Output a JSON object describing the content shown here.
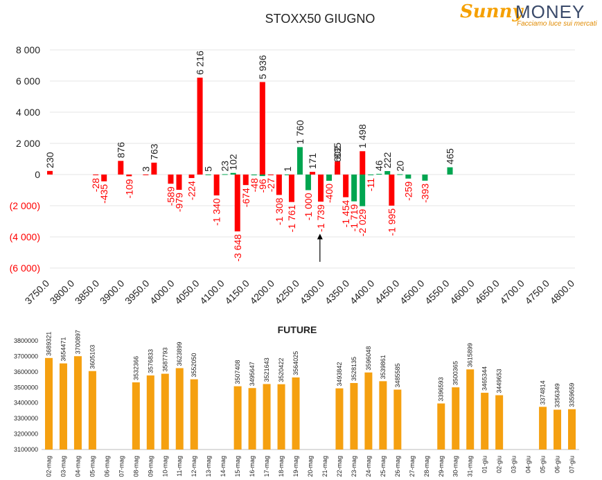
{
  "logo": {
    "word1": "Sunny",
    "word2": "MONEY",
    "tagline": "Facciamo luce sui mercati"
  },
  "colors": {
    "positive": "#00a550",
    "negative": "#ff0000",
    "label_red": "#ff0000",
    "label_black": "#222222",
    "future_bar": "#f5a010"
  },
  "chart_data": [
    {
      "type": "bar",
      "title": "STOXX50 GIUGNO",
      "xlabel": "",
      "ylabel": "",
      "ylim": [
        -6000,
        8000
      ],
      "yticks": [
        "(6 000)",
        "(4 000)",
        "(2 000)",
        "0",
        "2 000",
        "4 000",
        "6 000",
        "8 000"
      ],
      "grid": true,
      "categories": [
        "3750.0",
        "3800.0",
        "3850.0",
        "3900.0",
        "3950.0",
        "4000.0",
        "4050.0",
        "4100.0",
        "4150.0",
        "4200.0",
        "4250.0",
        "4300.0",
        "4350.0",
        "4400.0",
        "4450.0",
        "4500.0",
        "4550.0",
        "4600.0",
        "4650.0",
        "4700.0",
        "4750.0",
        "4800.0"
      ],
      "series": [
        {
          "color": "red",
          "values": [
            {
              "x": 3750,
              "y": 230,
              "label": "230"
            },
            {
              "x": 3850,
              "y": -28,
              "label": "-28"
            },
            {
              "x": 3850,
              "y": -435,
              "label": "-435"
            },
            {
              "x": 3900,
              "y": 876,
              "label": "876"
            },
            {
              "x": 3900,
              "y": -109,
              "label": "-109"
            },
            {
              "x": 3950,
              "y": 3,
              "label": "3"
            },
            {
              "x": 3950,
              "y": 763,
              "label": "763"
            },
            {
              "x": 4000,
              "y": -589,
              "label": "-589"
            },
            {
              "x": 4000,
              "y": -979,
              "label": "-979"
            },
            {
              "x": 4050,
              "y": -224,
              "label": "-224"
            },
            {
              "x": 4050,
              "y": 6216,
              "label": "6 216"
            },
            {
              "x": 4100,
              "y": -1340,
              "label": "-1 340"
            },
            {
              "x": 4150,
              "y": -3648,
              "label": "-3 648"
            },
            {
              "x": 4150,
              "y": -674,
              "label": "-674"
            },
            {
              "x": 4200,
              "y": 5936,
              "label": "5 936"
            },
            {
              "x": 4200,
              "y": -27,
              "label": "-27"
            },
            {
              "x": 4200,
              "y": -1308,
              "label": "-1 308"
            },
            {
              "x": 4250,
              "y": -1761,
              "label": "-1 761"
            },
            {
              "x": 4300,
              "y": 171,
              "label": "171"
            },
            {
              "x": 4300,
              "y": -1739,
              "label": "-1 739"
            },
            {
              "x": 4350,
              "y": 835,
              "label": "835"
            },
            {
              "x": 4350,
              "y": -1454,
              "label": "-1 454"
            },
            {
              "x": 4400,
              "y": 1498,
              "label": "1 498"
            },
            {
              "x": 4450,
              "y": -1995,
              "label": "-1 995"
            }
          ]
        },
        {
          "color": "green",
          "values": [
            {
              "x": 4050,
              "y": 5,
              "label": "5"
            },
            {
              "x": 4100,
              "y": 23,
              "label": "23"
            },
            {
              "x": 4100,
              "y": 102,
              "label": "102"
            },
            {
              "x": 4150,
              "y": -48,
              "label": "-48"
            },
            {
              "x": 4150,
              "y": -96,
              "label": "-96"
            },
            {
              "x": 4200,
              "y": 1,
              "label": "1"
            },
            {
              "x": 4250,
              "y": 1760,
              "label": "1 760"
            },
            {
              "x": 4250,
              "y": -1000,
              "label": "-1 000"
            },
            {
              "x": 4300,
              "y": -400,
              "label": "-400"
            },
            {
              "x": 4300,
              "y": 602,
              "label": "602"
            },
            {
              "x": 4350,
              "y": -1719,
              "label": "-1 719"
            },
            {
              "x": 4350,
              "y": -2029,
              "label": "-2 029"
            },
            {
              "x": 4400,
              "y": -11,
              "label": "-11"
            },
            {
              "x": 4400,
              "y": 46,
              "label": "46"
            },
            {
              "x": 4400,
              "y": 222,
              "label": "222"
            },
            {
              "x": 4450,
              "y": 20,
              "label": "20"
            },
            {
              "x": 4450,
              "y": -259,
              "label": "-259"
            },
            {
              "x": 4500,
              "y": -393,
              "label": "-393"
            },
            {
              "x": 4550,
              "y": 465,
              "label": "465"
            }
          ]
        }
      ],
      "annotations": [
        {
          "type": "arrow",
          "x": 4290,
          "y_from": -5600,
          "y_to": -3800
        }
      ]
    },
    {
      "type": "bar",
      "title": "FUTURE",
      "xlabel": "",
      "ylabel": "",
      "ylim": [
        3100000,
        3800000
      ],
      "yticks": [
        "3100000",
        "3200000",
        "3300000",
        "3400000",
        "3500000",
        "3600000",
        "3700000",
        "3800000"
      ],
      "grid": false,
      "categories": [
        "02-mag",
        "03-mag",
        "04-mag",
        "05-mag",
        "06-mag",
        "07-mag",
        "08-mag",
        "09-mag",
        "10-mag",
        "11-mag",
        "12-mag",
        "13-mag",
        "14-mag",
        "15-mag",
        "16-mag",
        "17-mag",
        "18-mag",
        "19-mag",
        "20-mag",
        "21-mag",
        "22-mag",
        "23-mag",
        "24-mag",
        "25-mag",
        "26-mag",
        "27-mag",
        "28-mag",
        "29-mag",
        "30-mag",
        "31-mag",
        "01-giu",
        "02-giu",
        "03-giu",
        "04-giu",
        "05-giu",
        "06-giu",
        "07-giu"
      ],
      "values": [
        3689321,
        3654471,
        3700897,
        3605103,
        null,
        null,
        3532366,
        3576833,
        3587793,
        3623899,
        3552050,
        null,
        null,
        3507408,
        3495647,
        3521643,
        3520422,
        3564025,
        null,
        null,
        3493842,
        3528135,
        3596048,
        3539861,
        3485585,
        null,
        null,
        3396593,
        3500365,
        3615899,
        3465344,
        3449653,
        null,
        null,
        3374814,
        3356349,
        3359659
      ],
      "labels": [
        "3689321",
        "3654471",
        "3700897",
        "3605103",
        "",
        "",
        "3532366",
        "3576833",
        "3587793",
        "3623899",
        "3552050",
        "",
        "",
        "3507408",
        "3495647",
        "3521643",
        "3520422",
        "3564025",
        "",
        "",
        "3493842",
        "3528135",
        "3596048",
        "3539861",
        "3485585",
        "",
        "",
        "3396593",
        "3500365",
        "3615899",
        "3465344",
        "3449653",
        "",
        "",
        "3374814",
        "3356349",
        "3359659"
      ]
    }
  ]
}
